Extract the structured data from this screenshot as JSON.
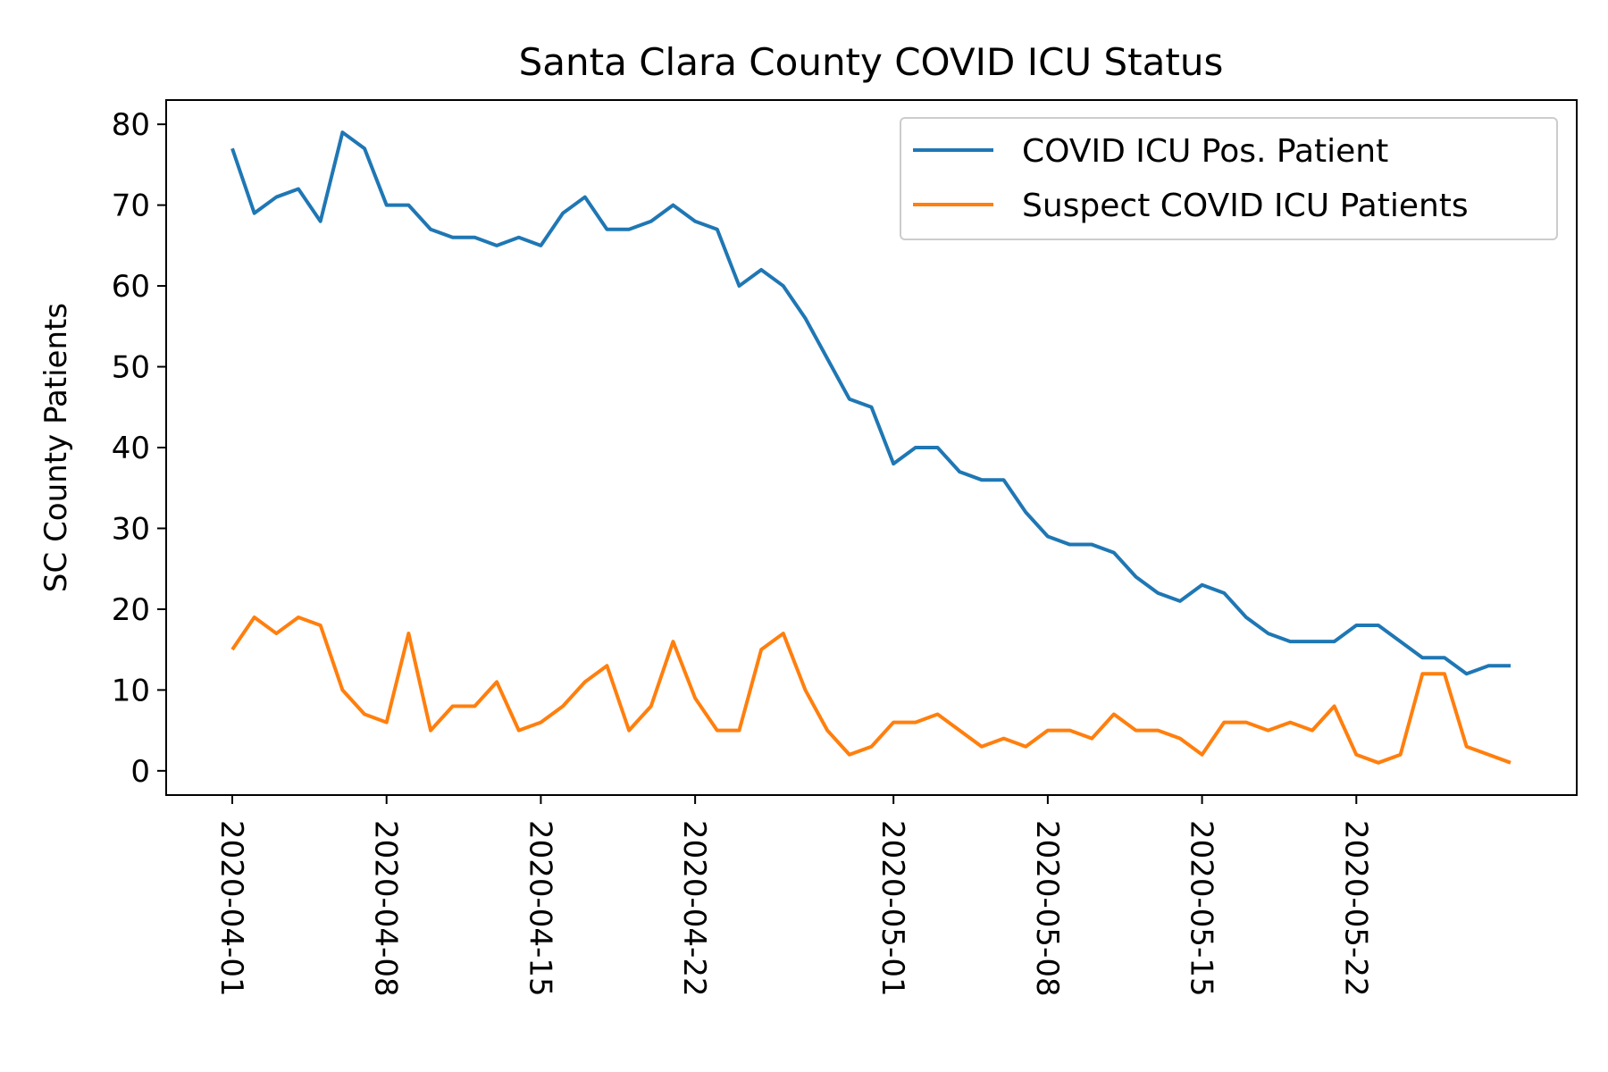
{
  "chart_data": {
    "type": "line",
    "title": "Santa Clara County COVID ICU Status",
    "xlabel": "",
    "ylabel": "SC County Patients",
    "x_type": "date",
    "xlim": [
      "2020-03-29",
      "2020-06-01"
    ],
    "ylim": [
      -3,
      83
    ],
    "y_ticks": [
      0,
      10,
      20,
      30,
      40,
      50,
      60,
      70,
      80
    ],
    "x_ticks": [
      "2020-04-01",
      "2020-04-08",
      "2020-04-15",
      "2020-04-22",
      "2020-05-01",
      "2020-05-08",
      "2020-05-15",
      "2020-05-22"
    ],
    "grid": false,
    "legend_position": "top-right",
    "x": [
      "2020-04-01",
      "2020-04-02",
      "2020-04-03",
      "2020-04-04",
      "2020-04-05",
      "2020-04-06",
      "2020-04-07",
      "2020-04-08",
      "2020-04-09",
      "2020-04-10",
      "2020-04-11",
      "2020-04-12",
      "2020-04-13",
      "2020-04-14",
      "2020-04-15",
      "2020-04-16",
      "2020-04-17",
      "2020-04-18",
      "2020-04-19",
      "2020-04-20",
      "2020-04-21",
      "2020-04-22",
      "2020-04-23",
      "2020-04-24",
      "2020-04-25",
      "2020-04-26",
      "2020-04-27",
      "2020-04-28",
      "2020-04-29",
      "2020-04-30",
      "2020-05-01",
      "2020-05-02",
      "2020-05-03",
      "2020-05-04",
      "2020-05-05",
      "2020-05-06",
      "2020-05-07",
      "2020-05-08",
      "2020-05-09",
      "2020-05-10",
      "2020-05-11",
      "2020-05-12",
      "2020-05-13",
      "2020-05-14",
      "2020-05-15",
      "2020-05-16",
      "2020-05-17",
      "2020-05-18",
      "2020-05-19",
      "2020-05-20",
      "2020-05-21",
      "2020-05-22",
      "2020-05-23",
      "2020-05-24",
      "2020-05-25",
      "2020-05-26",
      "2020-05-27",
      "2020-05-28",
      "2020-05-29"
    ],
    "series": [
      {
        "name": "COVID ICU Pos. Patient",
        "color": "#1f77b4",
        "values": [
          77,
          69,
          71,
          72,
          68,
          79,
          77,
          70,
          70,
          67,
          66,
          66,
          65,
          66,
          65,
          69,
          71,
          67,
          67,
          68,
          70,
          68,
          67,
          60,
          62,
          60,
          56,
          51,
          46,
          45,
          38,
          40,
          40,
          37,
          36,
          36,
          32,
          29,
          28,
          28,
          27,
          24,
          22,
          21,
          23,
          22,
          19,
          17,
          16,
          16,
          16,
          18,
          18,
          16,
          14,
          14,
          12,
          13,
          13
        ]
      },
      {
        "name": "Suspect COVID ICU Patients",
        "color": "#ff7f0e",
        "values": [
          15,
          19,
          17,
          19,
          18,
          10,
          7,
          6,
          17,
          5,
          8,
          8,
          11,
          5,
          6,
          8,
          11,
          13,
          5,
          8,
          16,
          9,
          5,
          5,
          15,
          17,
          10,
          5,
          2,
          3,
          6,
          6,
          7,
          5,
          3,
          4,
          3,
          5,
          5,
          4,
          7,
          5,
          5,
          4,
          2,
          6,
          6,
          5,
          6,
          5,
          8,
          2,
          1,
          2,
          12,
          12,
          3,
          2,
          1
        ]
      }
    ]
  }
}
